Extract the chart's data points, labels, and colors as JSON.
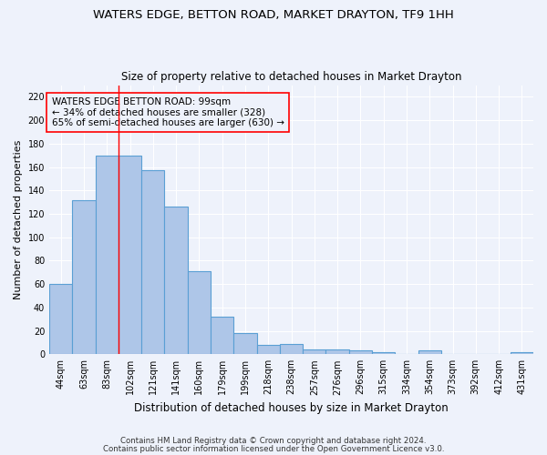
{
  "title1": "WATERS EDGE, BETTON ROAD, MARKET DRAYTON, TF9 1HH",
  "title2": "Size of property relative to detached houses in Market Drayton",
  "xlabel": "Distribution of detached houses by size in Market Drayton",
  "ylabel": "Number of detached properties",
  "bar_labels": [
    "44sqm",
    "63sqm",
    "83sqm",
    "102sqm",
    "121sqm",
    "141sqm",
    "160sqm",
    "179sqm",
    "199sqm",
    "218sqm",
    "238sqm",
    "257sqm",
    "276sqm",
    "296sqm",
    "315sqm",
    "334sqm",
    "354sqm",
    "373sqm",
    "392sqm",
    "412sqm",
    "431sqm"
  ],
  "bar_values": [
    60,
    132,
    170,
    170,
    157,
    126,
    71,
    32,
    18,
    8,
    9,
    4,
    4,
    3,
    2,
    0,
    3,
    0,
    0,
    0,
    2
  ],
  "bar_color": "#aec6e8",
  "bar_edge_color": "#5a9fd4",
  "ylim": [
    0,
    230
  ],
  "yticks": [
    0,
    20,
    40,
    60,
    80,
    100,
    120,
    140,
    160,
    180,
    200,
    220
  ],
  "annotation_text": "WATERS EDGE BETTON ROAD: 99sqm\n← 34% of detached houses are smaller (328)\n65% of semi-detached houses are larger (630) →",
  "footer1": "Contains HM Land Registry data © Crown copyright and database right 2024.",
  "footer2": "Contains public sector information licensed under the Open Government Licence v3.0.",
  "bg_color": "#eef2fb"
}
